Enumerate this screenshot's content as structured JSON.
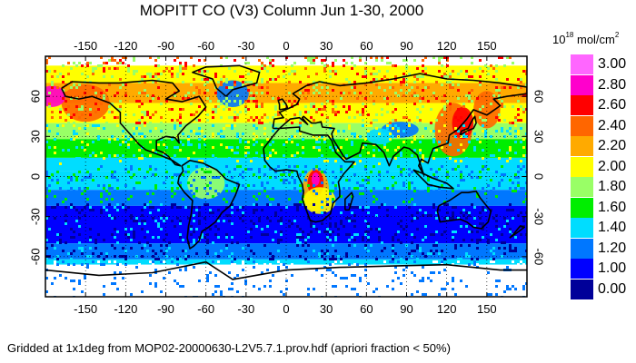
{
  "title": "MOPITT CO (V3) Column Jun 1-30, 2000",
  "caption": "Gridded at 1x1deg from MOP02-20000630-L2V5.7.1.prov.hdf (apriori fraction < 50%)",
  "legend": {
    "unit_base": "10",
    "unit_exponent": "18",
    "unit_text": " mol/cm",
    "unit_exponent2": "2",
    "items": [
      {
        "label": "3.00",
        "color": "#ff66ff"
      },
      {
        "label": "2.80",
        "color": "#ff00cc"
      },
      {
        "label": "2.60",
        "color": "#ff0000"
      },
      {
        "label": "2.40",
        "color": "#ff6600"
      },
      {
        "label": "2.20",
        "color": "#ffaa00"
      },
      {
        "label": "2.00",
        "color": "#ffff00"
      },
      {
        "label": "1.80",
        "color": "#99ff66"
      },
      {
        "label": "1.60",
        "color": "#00ee00"
      },
      {
        "label": "1.40",
        "color": "#00ddff"
      },
      {
        "label": "1.20",
        "color": "#0077ff"
      },
      {
        "label": "1.00",
        "color": "#0000ff"
      },
      {
        "label": "0.00",
        "color": "#000099"
      }
    ]
  },
  "map": {
    "projection": "equirectangular",
    "lon_range": [
      -180,
      180
    ],
    "lat_range": [
      -90,
      90
    ],
    "lon_ticks": [
      "-150",
      "-120",
      "-90",
      "-60",
      "-30",
      "0",
      "30",
      "60",
      "90",
      "120",
      "150"
    ],
    "lat_ticks": [
      "60",
      "30",
      "0",
      "-30",
      "-60"
    ],
    "gridlines": "dotted",
    "no_data_color": "#ffffff"
  }
}
